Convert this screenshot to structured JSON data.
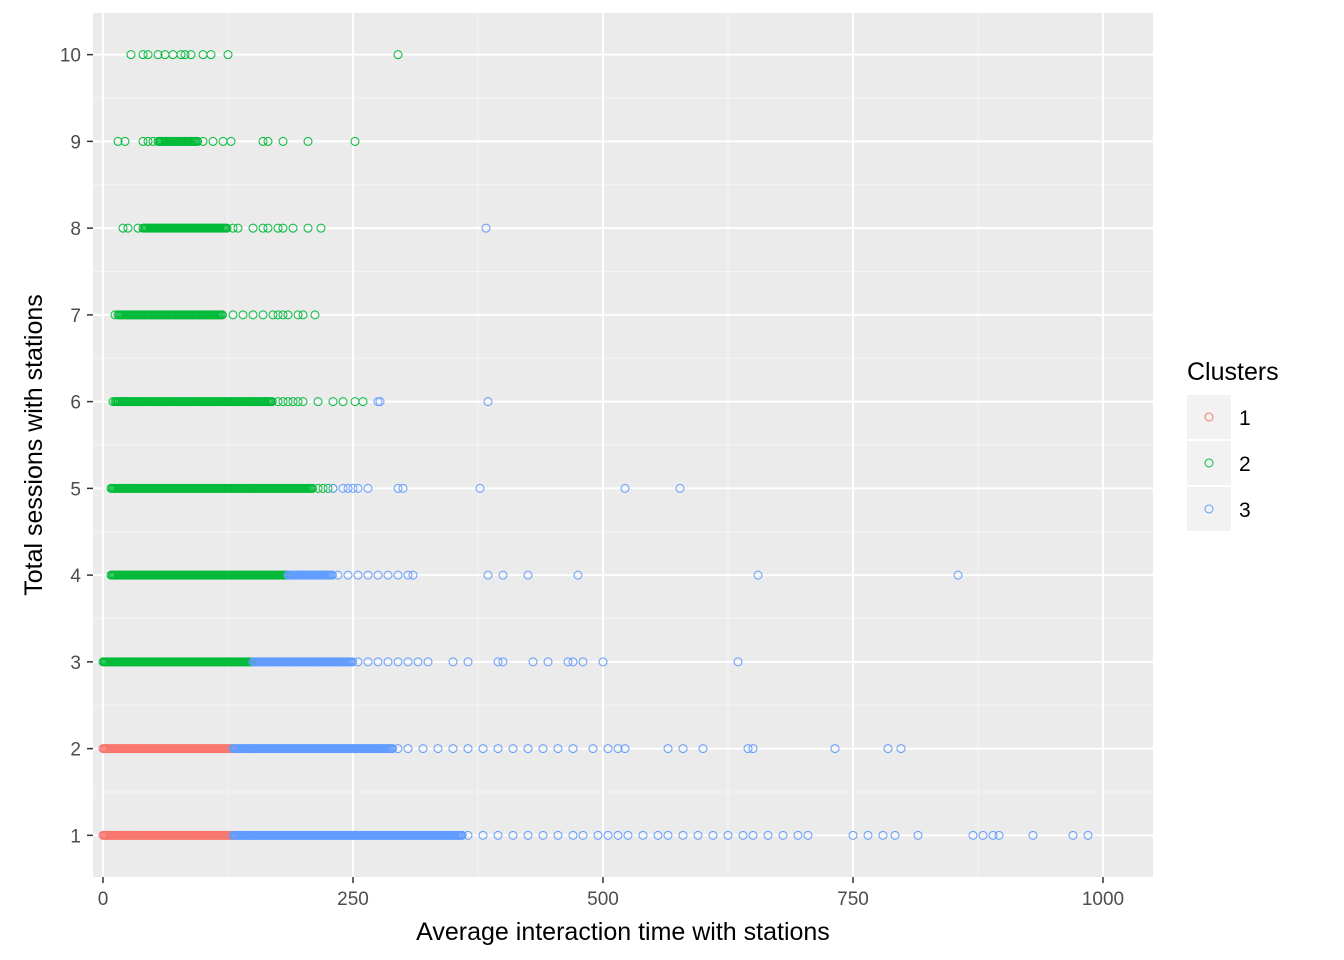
{
  "chart_data": {
    "type": "scatter",
    "title": "",
    "xlabel": "Average interaction time with stations",
    "ylabel": "Total sessions with stations",
    "xlim": [
      -10,
      1050
    ],
    "ylim": [
      0.52,
      10.48
    ],
    "x_ticks": [
      0,
      250,
      500,
      750,
      1000
    ],
    "x_tick_labels": [
      "0",
      "250",
      "500",
      "750",
      "1000"
    ],
    "y_ticks": [
      1,
      2,
      3,
      4,
      5,
      6,
      7,
      8,
      9,
      10
    ],
    "y_tick_labels": [
      "1",
      "2",
      "3",
      "4",
      "5",
      "6",
      "7",
      "8",
      "9",
      "10"
    ],
    "grid": true,
    "panel_background": "#ebebeb",
    "legend": {
      "title": "Clusters",
      "position": "right"
    },
    "series": [
      {
        "name": "1",
        "color": "#f8766d",
        "dense_ranges": [
          {
            "y": 1,
            "x_from": 0,
            "x_to": 130
          },
          {
            "y": 2,
            "x_from": 0,
            "x_to": 130
          }
        ],
        "points": []
      },
      {
        "name": "2",
        "color": "#00ba38",
        "dense_ranges": [
          {
            "y": 3,
            "x_from": 0,
            "x_to": 150
          },
          {
            "y": 4,
            "x_from": 8,
            "x_to": 185
          },
          {
            "y": 5,
            "x_from": 8,
            "x_to": 210
          },
          {
            "y": 6,
            "x_from": 12,
            "x_to": 170
          },
          {
            "y": 7,
            "x_from": 15,
            "x_to": 120
          },
          {
            "y": 8,
            "x_from": 40,
            "x_to": 125
          },
          {
            "y": 9,
            "x_from": 55,
            "x_to": 95
          }
        ],
        "points": [
          [
            10,
            6
          ],
          [
            15,
            6
          ],
          [
            20,
            6
          ],
          [
            175,
            6
          ],
          [
            180,
            6
          ],
          [
            185,
            6
          ],
          [
            190,
            6
          ],
          [
            195,
            6
          ],
          [
            200,
            6
          ],
          [
            215,
            6
          ],
          [
            230,
            6
          ],
          [
            240,
            6
          ],
          [
            252,
            6
          ],
          [
            260,
            6
          ],
          [
            12,
            7
          ],
          [
            130,
            7
          ],
          [
            140,
            7
          ],
          [
            150,
            7
          ],
          [
            160,
            7
          ],
          [
            170,
            7
          ],
          [
            175,
            7
          ],
          [
            180,
            7
          ],
          [
            185,
            7
          ],
          [
            195,
            7
          ],
          [
            200,
            7
          ],
          [
            212,
            7
          ],
          [
            20,
            8
          ],
          [
            25,
            8
          ],
          [
            35,
            8
          ],
          [
            130,
            8
          ],
          [
            135,
            8
          ],
          [
            150,
            8
          ],
          [
            160,
            8
          ],
          [
            165,
            8
          ],
          [
            175,
            8
          ],
          [
            180,
            8
          ],
          [
            190,
            8
          ],
          [
            205,
            8
          ],
          [
            218,
            8
          ],
          [
            15,
            9
          ],
          [
            22,
            9
          ],
          [
            40,
            9
          ],
          [
            45,
            9
          ],
          [
            50,
            9
          ],
          [
            100,
            9
          ],
          [
            110,
            9
          ],
          [
            120,
            9
          ],
          [
            128,
            9
          ],
          [
            160,
            9
          ],
          [
            165,
            9
          ],
          [
            180,
            9
          ],
          [
            205,
            9
          ],
          [
            252,
            9
          ],
          [
            28,
            10
          ],
          [
            40,
            10
          ],
          [
            45,
            10
          ],
          [
            55,
            10
          ],
          [
            62,
            10
          ],
          [
            70,
            10
          ],
          [
            78,
            10
          ],
          [
            82,
            10
          ],
          [
            88,
            10
          ],
          [
            100,
            10
          ],
          [
            108,
            10
          ],
          [
            125,
            10
          ],
          [
            295,
            10
          ],
          [
            215,
            5
          ],
          [
            220,
            5
          ],
          [
            225,
            5
          ],
          [
            230,
            5
          ]
        ]
      },
      {
        "name": "3",
        "color": "#619cff",
        "dense_ranges": [
          {
            "y": 1,
            "x_from": 130,
            "x_to": 360
          },
          {
            "y": 2,
            "x_from": 130,
            "x_to": 290
          },
          {
            "y": 3,
            "x_from": 150,
            "x_to": 250
          },
          {
            "y": 4,
            "x_from": 185,
            "x_to": 230
          }
        ],
        "points": [
          [
            365,
            1
          ],
          [
            380,
            1
          ],
          [
            395,
            1
          ],
          [
            410,
            1
          ],
          [
            425,
            1
          ],
          [
            440,
            1
          ],
          [
            455,
            1
          ],
          [
            470,
            1
          ],
          [
            480,
            1
          ],
          [
            495,
            1
          ],
          [
            505,
            1
          ],
          [
            515,
            1
          ],
          [
            525,
            1
          ],
          [
            540,
            1
          ],
          [
            555,
            1
          ],
          [
            565,
            1
          ],
          [
            580,
            1
          ],
          [
            595,
            1
          ],
          [
            610,
            1
          ],
          [
            625,
            1
          ],
          [
            640,
            1
          ],
          [
            650,
            1
          ],
          [
            665,
            1
          ],
          [
            680,
            1
          ],
          [
            695,
            1
          ],
          [
            705,
            1
          ],
          [
            750,
            1
          ],
          [
            765,
            1
          ],
          [
            780,
            1
          ],
          [
            792,
            1
          ],
          [
            815,
            1
          ],
          [
            870,
            1
          ],
          [
            880,
            1
          ],
          [
            890,
            1
          ],
          [
            896,
            1
          ],
          [
            930,
            1
          ],
          [
            970,
            1
          ],
          [
            985,
            1
          ],
          [
            295,
            2
          ],
          [
            305,
            2
          ],
          [
            320,
            2
          ],
          [
            335,
            2
          ],
          [
            350,
            2
          ],
          [
            365,
            2
          ],
          [
            380,
            2
          ],
          [
            395,
            2
          ],
          [
            410,
            2
          ],
          [
            425,
            2
          ],
          [
            440,
            2
          ],
          [
            455,
            2
          ],
          [
            470,
            2
          ],
          [
            490,
            2
          ],
          [
            505,
            2
          ],
          [
            515,
            2
          ],
          [
            522,
            2
          ],
          [
            565,
            2
          ],
          [
            580,
            2
          ],
          [
            600,
            2
          ],
          [
            645,
            2
          ],
          [
            650,
            2
          ],
          [
            732,
            2
          ],
          [
            785,
            2
          ],
          [
            798,
            2
          ],
          [
            255,
            3
          ],
          [
            265,
            3
          ],
          [
            275,
            3
          ],
          [
            285,
            3
          ],
          [
            295,
            3
          ],
          [
            305,
            3
          ],
          [
            315,
            3
          ],
          [
            325,
            3
          ],
          [
            350,
            3
          ],
          [
            365,
            3
          ],
          [
            395,
            3
          ],
          [
            400,
            3
          ],
          [
            430,
            3
          ],
          [
            445,
            3
          ],
          [
            465,
            3
          ],
          [
            470,
            3
          ],
          [
            480,
            3
          ],
          [
            500,
            3
          ],
          [
            635,
            3
          ],
          [
            235,
            4
          ],
          [
            245,
            4
          ],
          [
            255,
            4
          ],
          [
            265,
            4
          ],
          [
            275,
            4
          ],
          [
            285,
            4
          ],
          [
            295,
            4
          ],
          [
            305,
            4
          ],
          [
            310,
            4
          ],
          [
            385,
            4
          ],
          [
            400,
            4
          ],
          [
            425,
            4
          ],
          [
            475,
            4
          ],
          [
            655,
            4
          ],
          [
            855,
            4
          ],
          [
            230,
            5
          ],
          [
            240,
            5
          ],
          [
            245,
            5
          ],
          [
            250,
            5
          ],
          [
            255,
            5
          ],
          [
            265,
            5
          ],
          [
            295,
            5
          ],
          [
            300,
            5
          ],
          [
            377,
            5
          ],
          [
            522,
            5
          ],
          [
            577,
            5
          ],
          [
            275,
            6
          ],
          [
            277,
            6
          ],
          [
            385,
            6
          ],
          [
            383,
            8
          ]
        ]
      }
    ]
  }
}
